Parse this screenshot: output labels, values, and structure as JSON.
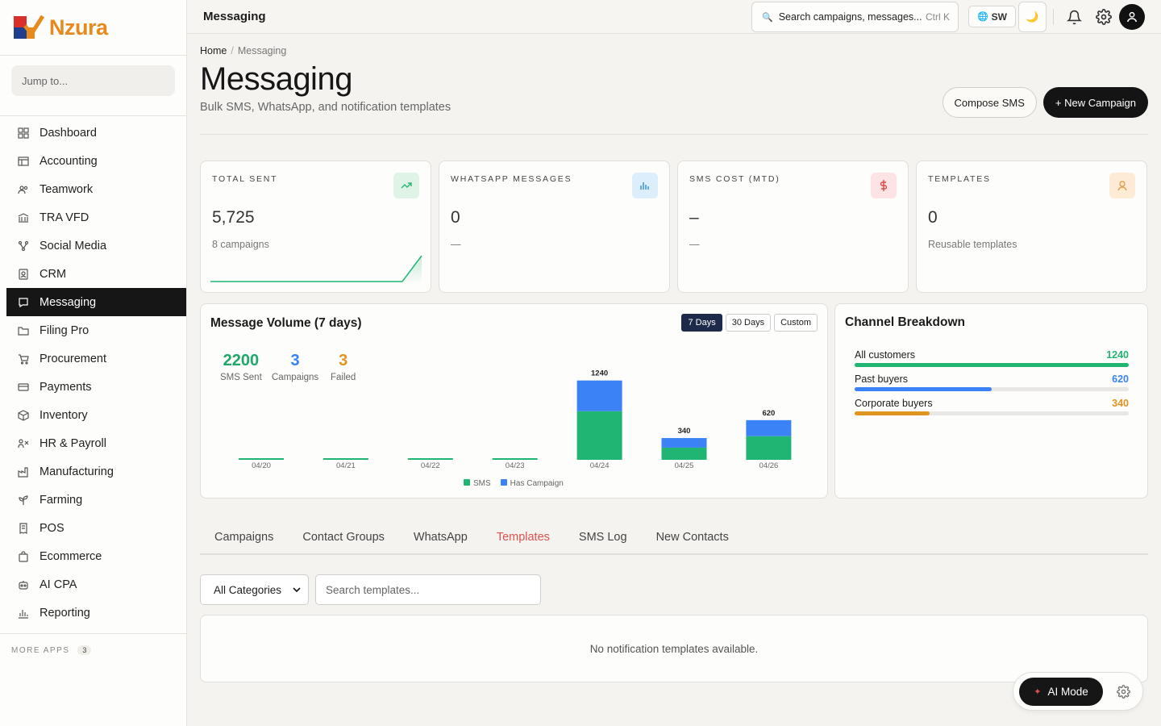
{
  "brand": {
    "name": "Nzura"
  },
  "sidebar": {
    "jump_placeholder": "Jump to...",
    "items": [
      {
        "label": "Dashboard",
        "icon": "dashboard-icon"
      },
      {
        "label": "Accounting",
        "icon": "ledger-icon"
      },
      {
        "label": "Teamwork",
        "icon": "team-icon"
      },
      {
        "label": "TRA VFD",
        "icon": "bank-icon"
      },
      {
        "label": "Social Media",
        "icon": "share-icon"
      },
      {
        "label": "CRM",
        "icon": "contact-card-icon"
      },
      {
        "label": "Messaging",
        "icon": "chat-icon"
      },
      {
        "label": "Filing Pro",
        "icon": "folder-icon"
      },
      {
        "label": "Procurement",
        "icon": "cart-icon"
      },
      {
        "label": "Payments",
        "icon": "card-icon"
      },
      {
        "label": "Inventory",
        "icon": "box-icon"
      },
      {
        "label": "HR & Payroll",
        "icon": "people-icon"
      },
      {
        "label": "Manufacturing",
        "icon": "factory-icon"
      },
      {
        "label": "Farming",
        "icon": "plant-icon"
      },
      {
        "label": "POS",
        "icon": "receipt-icon"
      },
      {
        "label": "Ecommerce",
        "icon": "bag-icon"
      },
      {
        "label": "AI CPA",
        "icon": "robot-icon"
      },
      {
        "label": "Reporting",
        "icon": "bar-chart-icon"
      }
    ],
    "active_index": 6,
    "more_apps_label": "MORE APPS",
    "more_apps_count": "3"
  },
  "topbar": {
    "title": "Messaging",
    "search_placeholder": "Search campaigns, messages...",
    "search_shortcut": "Ctrl K",
    "language": "SW"
  },
  "page": {
    "breadcrumb": {
      "home": "Home",
      "current": "Messaging"
    },
    "title": "Messaging",
    "subtitle": "Bulk SMS, WhatsApp, and notification templates",
    "compose_label": "Compose SMS",
    "new_campaign_label": "+ New Campaign"
  },
  "cards": [
    {
      "label": "TOTAL SENT",
      "value": "5,725",
      "note": "8 campaigns",
      "icon": "trend-up-icon",
      "badge_bg": "#dff4e6",
      "badge_color": "#2bb673"
    },
    {
      "label": "WHATSAPP MESSAGES",
      "value": "0",
      "note": "—",
      "icon": "bars-icon",
      "badge_bg": "#dceefb",
      "badge_color": "#2f8fd6"
    },
    {
      "label": "SMS COST (MTD)",
      "value": "–",
      "note": "—",
      "icon": "dollar-icon",
      "badge_bg": "#fde3e3",
      "badge_color": "#e04848"
    },
    {
      "label": "TEMPLATES",
      "value": "0",
      "note": "Reusable templates",
      "icon": "user-icon",
      "badge_bg": "#fdebd6",
      "badge_color": "#e8a050"
    }
  ],
  "volume": {
    "title": "Message Volume (7 days)",
    "ranges": [
      "7 Days",
      "30 Days",
      "Custom"
    ],
    "active_range": 0,
    "stats": [
      {
        "value": "2200",
        "label": "SMS Sent",
        "color": "#21a76a"
      },
      {
        "value": "3",
        "label": "Campaigns",
        "color": "#3b82f6"
      },
      {
        "value": "3",
        "label": "Failed",
        "color": "#e09520"
      }
    ],
    "legend": [
      "SMS",
      "Has Campaign"
    ],
    "colors": {
      "sms": "#21b574",
      "campaign": "#3b82f6"
    }
  },
  "chart_data": {
    "type": "bar",
    "categories": [
      "04/20",
      "04/21",
      "04/22",
      "04/23",
      "04/24",
      "04/25",
      "04/26"
    ],
    "series": [
      {
        "name": "SMS",
        "values": [
          0,
          0,
          0,
          0,
          760,
          190,
          370
        ]
      },
      {
        "name": "Has Campaign",
        "values": [
          0,
          0,
          0,
          0,
          480,
          150,
          250
        ]
      }
    ],
    "totals": [
      null,
      null,
      null,
      null,
      1240,
      340,
      620
    ],
    "ylim": [
      0,
      1400
    ]
  },
  "channels": {
    "title": "Channel Breakdown",
    "rows": [
      {
        "label": "All customers",
        "value": "1240",
        "fraction": 1.0,
        "color": "#21b574"
      },
      {
        "label": "Past buyers",
        "value": "620",
        "fraction": 0.5,
        "color": "#3b82f6"
      },
      {
        "label": "Corporate buyers",
        "value": "340",
        "fraction": 0.274,
        "color": "#e09520"
      }
    ]
  },
  "tabs": [
    "Campaigns",
    "Contact Groups",
    "WhatsApp",
    "Templates",
    "SMS Log",
    "New Contacts"
  ],
  "active_tab": 3,
  "filters": {
    "category": "All Categories",
    "search_placeholder": "Search templates..."
  },
  "empty_message": "No notification templates available.",
  "ai": {
    "label": "AI Mode"
  }
}
